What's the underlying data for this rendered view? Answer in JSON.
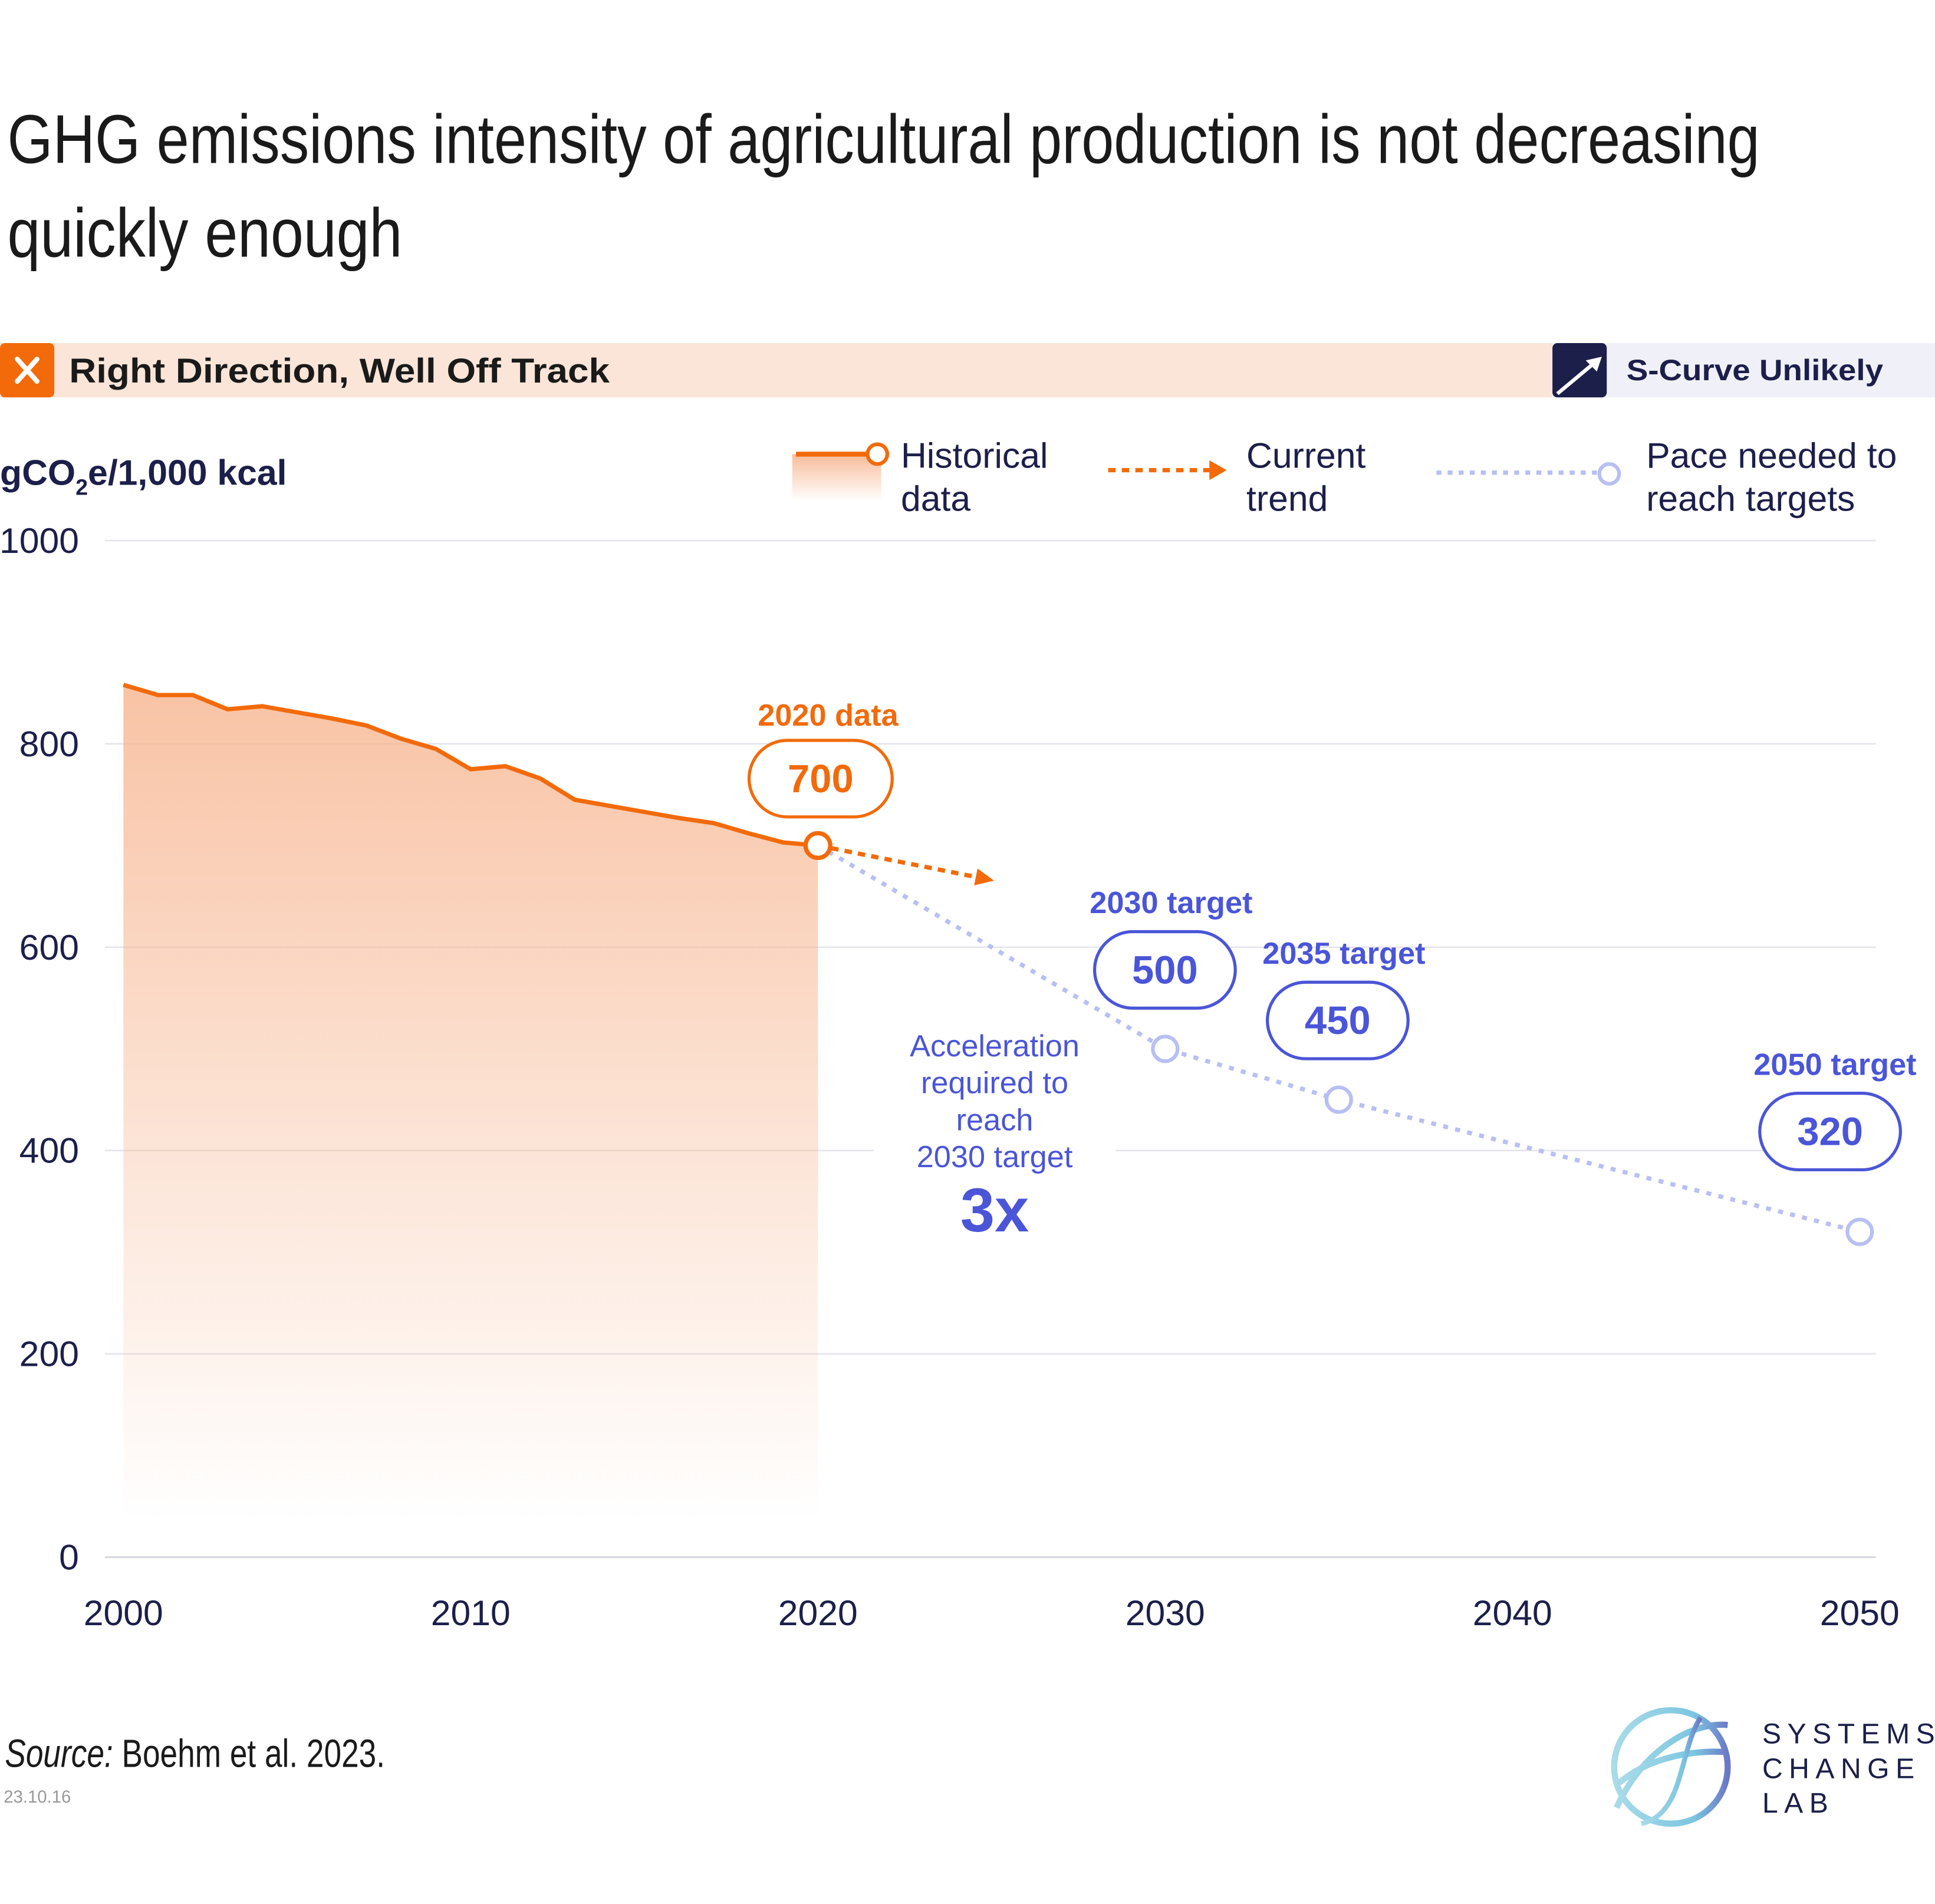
{
  "title_line1": "GHG emissions intensity of agricultural production is not decreasing",
  "title_line2": "quickly enough",
  "status": {
    "label": "Right Direction, Well Off Track",
    "icon": "x-icon",
    "color": "#f26a0a",
    "background": "#fbe5d8"
  },
  "scurve": {
    "label": "S-Curve Unlikely",
    "icon": "arrow-up-right-icon",
    "color": "#1c1f4a",
    "background": "#f0f1f8"
  },
  "legend": {
    "historical": [
      "Historical",
      "data"
    ],
    "trend": [
      "Current",
      "trend"
    ],
    "pace": [
      "Pace needed to",
      "reach targets"
    ]
  },
  "annotations": {
    "data2020_label": "2020 data",
    "data2020_value": "700",
    "t2030_label": "2030 target",
    "t2030_value": "500",
    "t2035_label": "2035 target",
    "t2035_value": "450",
    "t2050_label": "2050 target",
    "t2050_value": "320",
    "accel_lines": [
      "Acceleration",
      "required to",
      "reach",
      "2030 target"
    ],
    "accel_value": "3x"
  },
  "source_prefix": "Source:",
  "source_text": " Boehm et al. 2023.",
  "date_code": "23.10.16",
  "logo_text": [
    "SYSTEMS",
    "CHANGE",
    "LAB"
  ],
  "chart_data": {
    "type": "line",
    "ylabel": "gCO2e/1,000 kcal",
    "ylabel_parts": {
      "pre": "gCO",
      "sub": "2",
      "post": "e/1,000 kcal"
    },
    "xlim": [
      2000,
      2050
    ],
    "ylim": [
      0,
      1000
    ],
    "x_ticks": [
      "2000",
      "2010",
      "2020",
      "2030",
      "2040",
      "2050"
    ],
    "y_ticks": [
      "0",
      "200",
      "400",
      "600",
      "800",
      "1000"
    ],
    "grid": true,
    "legend_position": "top",
    "colors": {
      "historical": "#f26a0a",
      "trend": "#f26a0a",
      "pace": "#b8bff3",
      "labels": "#4a55d8",
      "axis_text": "#1c1f4a"
    },
    "series": [
      {
        "name": "Historical data",
        "x": [
          2000,
          2001,
          2002,
          2003,
          2004,
          2005,
          2006,
          2007,
          2008,
          2009,
          2010,
          2011,
          2012,
          2013,
          2014,
          2015,
          2016,
          2017,
          2018,
          2019,
          2020
        ],
        "y": [
          858,
          848,
          848,
          834,
          837,
          831,
          825,
          818,
          805,
          795,
          775,
          778,
          766,
          745,
          739,
          733,
          727,
          722,
          712,
          703,
          700
        ]
      },
      {
        "name": "Current trend",
        "x": [
          2020,
          2025
        ],
        "y": [
          700,
          666
        ]
      },
      {
        "name": "Pace needed to reach targets",
        "x": [
          2020,
          2030,
          2035,
          2050
        ],
        "y": [
          700,
          500,
          450,
          320
        ]
      }
    ]
  }
}
